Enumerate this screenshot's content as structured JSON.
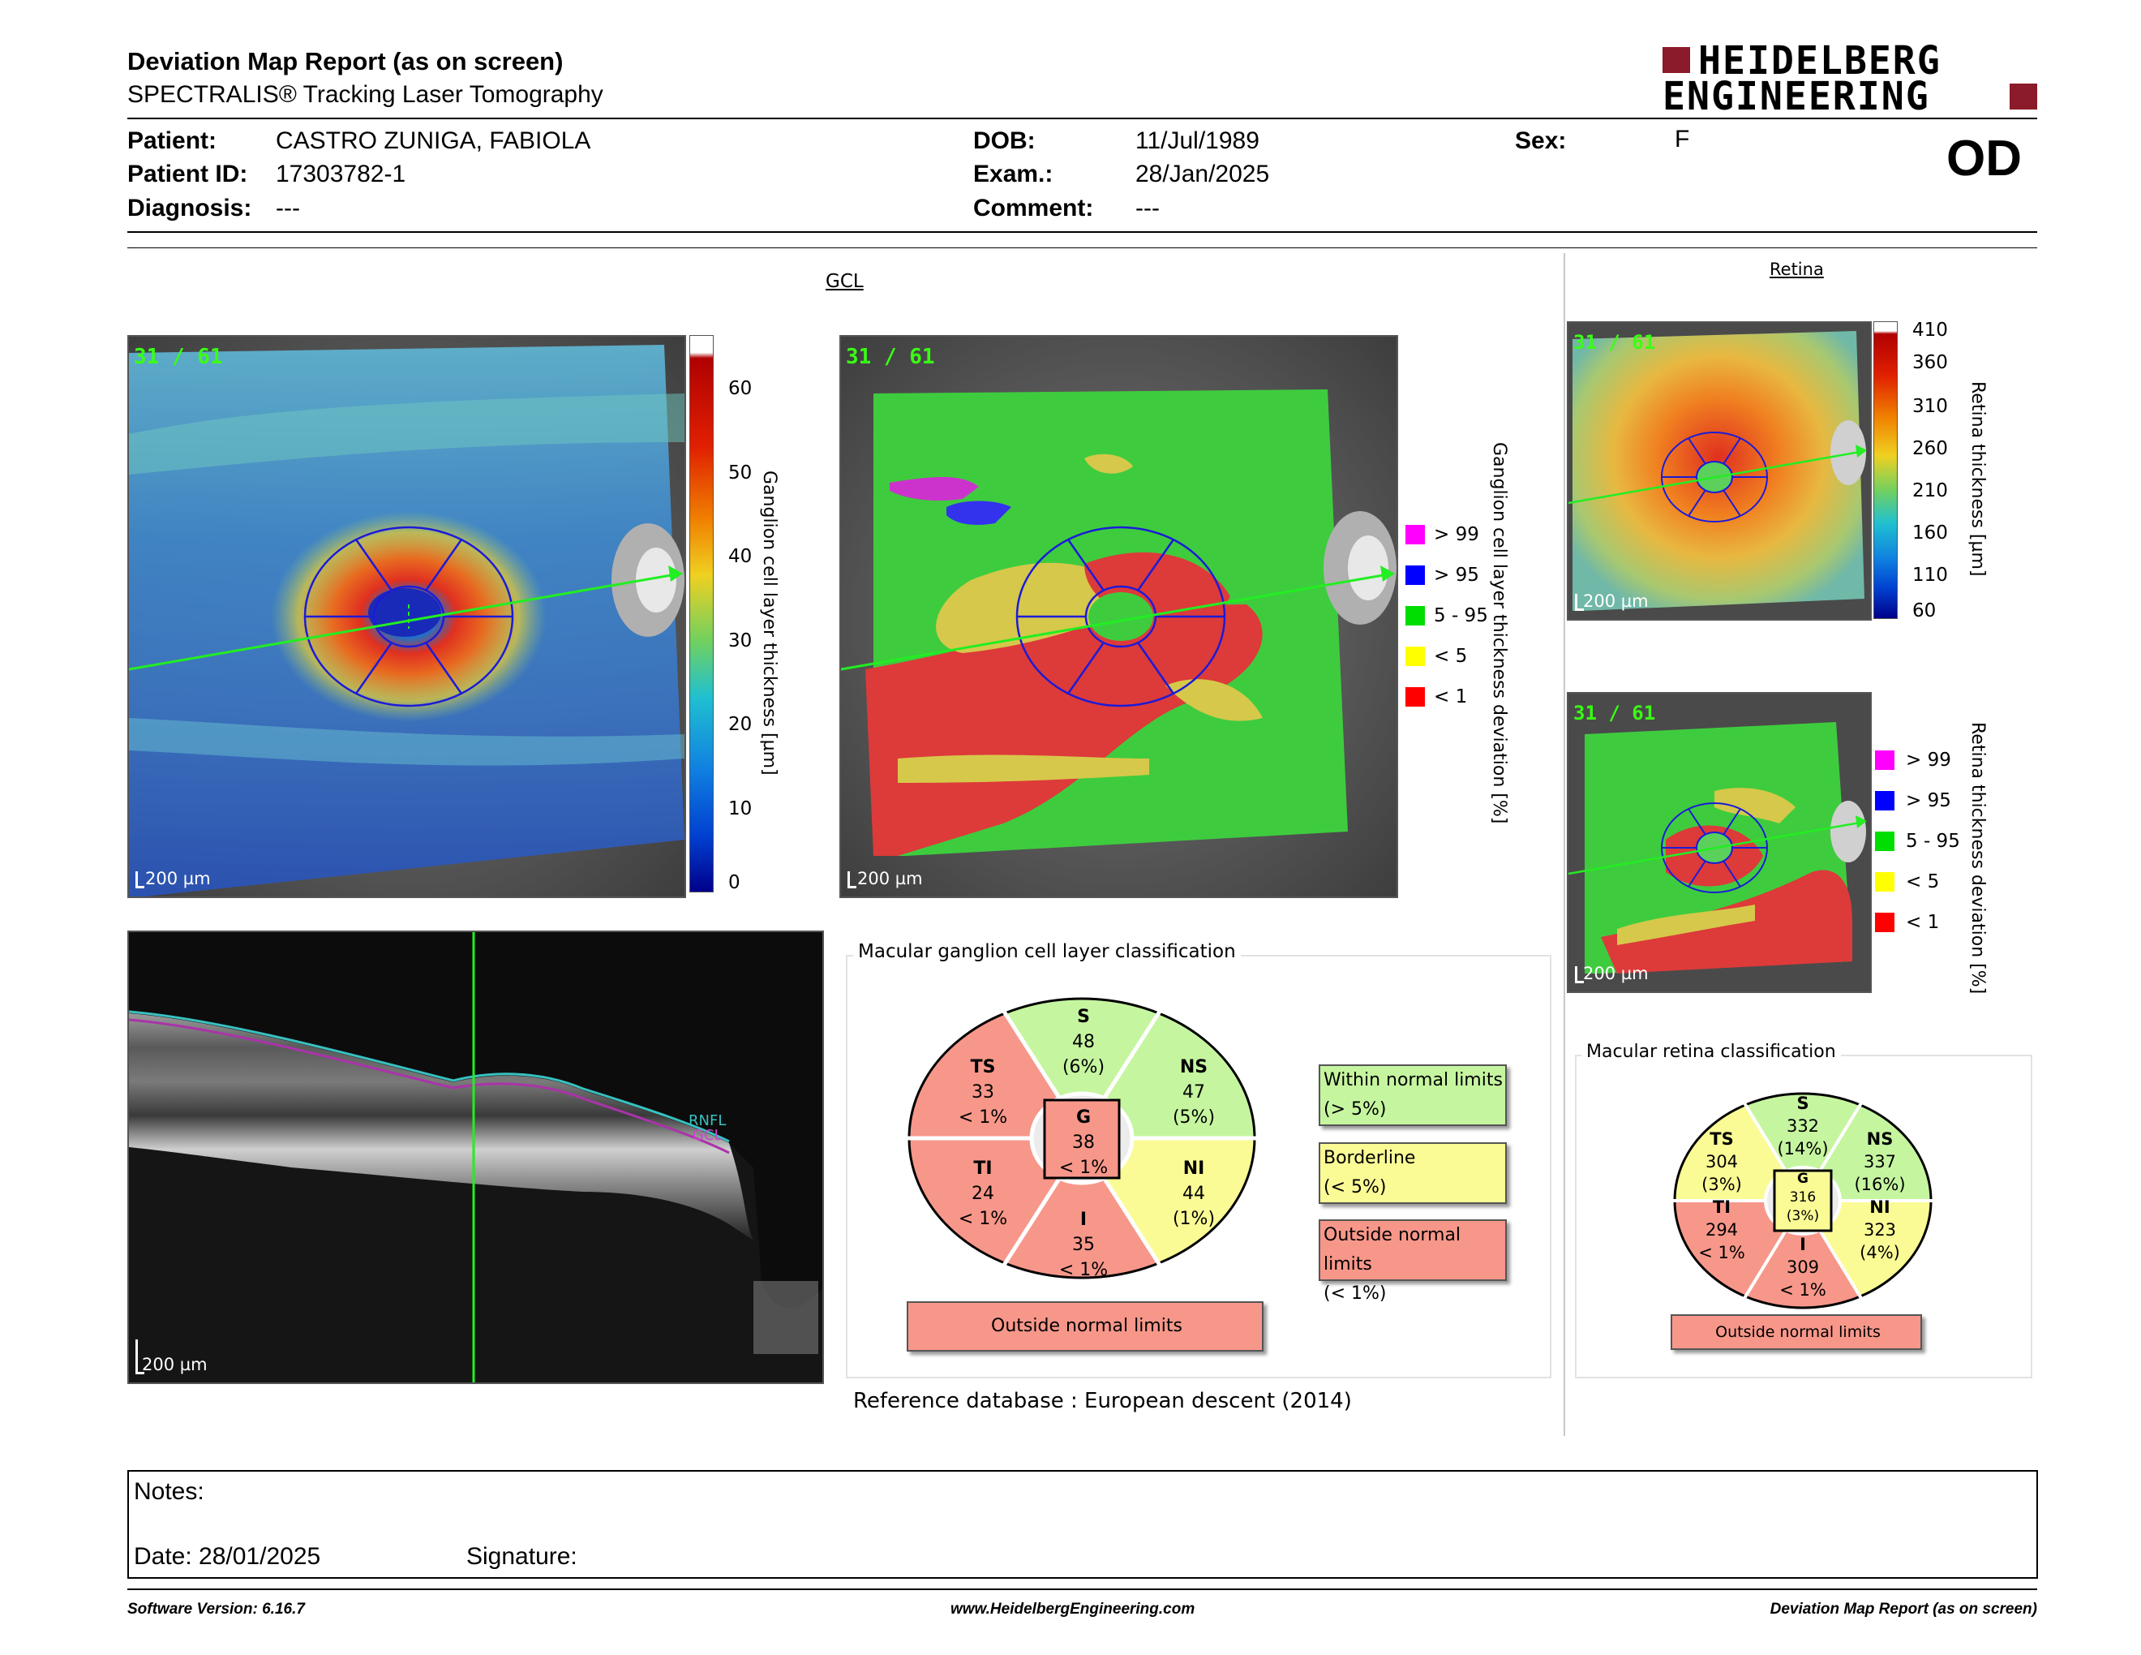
{
  "header": {
    "title": "Deviation Map Report (as on screen)",
    "subtitle": "SPECTRALIS® Tracking Laser Tomography",
    "logo_line1": "HEIDELBERG",
    "logo_line2": "ENGINEERING",
    "eye": "OD"
  },
  "patient": {
    "patient_label": "Patient:",
    "patient_value": "CASTRO ZUNIGA, FABIOLA",
    "id_label": "Patient ID:",
    "id_value": "17303782-1",
    "diagnosis_label": "Diagnosis:",
    "diagnosis_value": "---",
    "dob_label": "DOB:",
    "dob_value": "11/Jul/1989",
    "exam_label": "Exam.:",
    "exam_value": "28/Jan/2025",
    "comment_label": "Comment:",
    "comment_value": "---",
    "sex_label": "Sex:",
    "sex_value": "F"
  },
  "gcl": {
    "heading": "GCL",
    "counter": "31 / 61",
    "scale_bar": "200 µm",
    "colorbar_ticks": [
      "60",
      "50",
      "40",
      "30",
      "20",
      "10",
      "0"
    ],
    "colorbar_label": "Ganglion cell layer thickness [µm]",
    "deviation_label": "Ganglion cell layer thickness deviation [%]"
  },
  "deviation_legend": [
    {
      "label": "> 99",
      "color": "#ff00ff"
    },
    {
      "label": "> 95",
      "color": "#0000ff"
    },
    {
      "label": "5 - 95",
      "color": "#00dd00"
    },
    {
      "label": "< 5",
      "color": "#ffff00"
    },
    {
      "label": "< 1",
      "color": "#ff0000"
    }
  ],
  "oct": {
    "scale_bar": "200 µm",
    "rnfl_label": "RNFL",
    "gcl_label": "GCL"
  },
  "gcl_classification": {
    "title": "Macular ganglion cell layer classification",
    "sectors": {
      "S": {
        "name": "S",
        "value": "48",
        "pct": "(6%)"
      },
      "NS": {
        "name": "NS",
        "value": "47",
        "pct": "(5%)"
      },
      "NI": {
        "name": "NI",
        "value": "44",
        "pct": "(1%)"
      },
      "I": {
        "name": "I",
        "value": "35",
        "pct": "< 1%"
      },
      "TI": {
        "name": "TI",
        "value": "24",
        "pct": "< 1%"
      },
      "TS": {
        "name": "TS",
        "value": "33",
        "pct": "< 1%"
      },
      "G": {
        "name": "G",
        "value": "38",
        "pct": "< 1%"
      }
    },
    "result": "Outside normal limits",
    "legend": [
      {
        "line1": "Within normal limits",
        "line2": "(> 5%)",
        "color": "#c6f5a0"
      },
      {
        "line1": "Borderline",
        "line2": "(< 5%)",
        "color": "#fbfb96"
      },
      {
        "line1": "Outside normal limits",
        "line2": "(< 1%)",
        "color": "#f7978a"
      }
    ]
  },
  "reference_db": "Reference database :  European descent (2014)",
  "retina": {
    "heading": "Retina",
    "counter1": "31 / 61",
    "counter2": "31 / 61",
    "scale_bar": "200 µm",
    "colorbar_ticks": [
      "410",
      "360",
      "310",
      "260",
      "210",
      "160",
      "110",
      "60"
    ],
    "colorbar_label": "Retina thickness [µm]",
    "deviation_label": "Retina thickness deviation [%]"
  },
  "retina_classification": {
    "title": "Macular retina classification",
    "sectors": {
      "S": {
        "name": "S",
        "value": "332",
        "pct": "(14%)"
      },
      "NS": {
        "name": "NS",
        "value": "337",
        "pct": "(16%)"
      },
      "NI": {
        "name": "NI",
        "value": "323",
        "pct": "(4%)"
      },
      "I": {
        "name": "I",
        "value": "309",
        "pct": "< 1%"
      },
      "TI": {
        "name": "TI",
        "value": "294",
        "pct": "< 1%"
      },
      "TS": {
        "name": "TS",
        "value": "304",
        "pct": "(3%)"
      },
      "G": {
        "name": "G",
        "value": "316",
        "pct": "(3%)"
      }
    },
    "result": "Outside normal limits"
  },
  "notes": {
    "notes_label": "Notes:",
    "date_label": "Date: 28/01/2025",
    "signature_label": "Signature:"
  },
  "footer": {
    "version": "Software Version: 6.16.7",
    "url": "www.HeidelbergEngineering.com",
    "report": "Deviation Map Report (as on screen)"
  },
  "colors": {
    "within": "#c6f5a0",
    "borderline": "#fbfb96",
    "outside": "#f7978a",
    "logo_red": "#8b1a2a"
  }
}
